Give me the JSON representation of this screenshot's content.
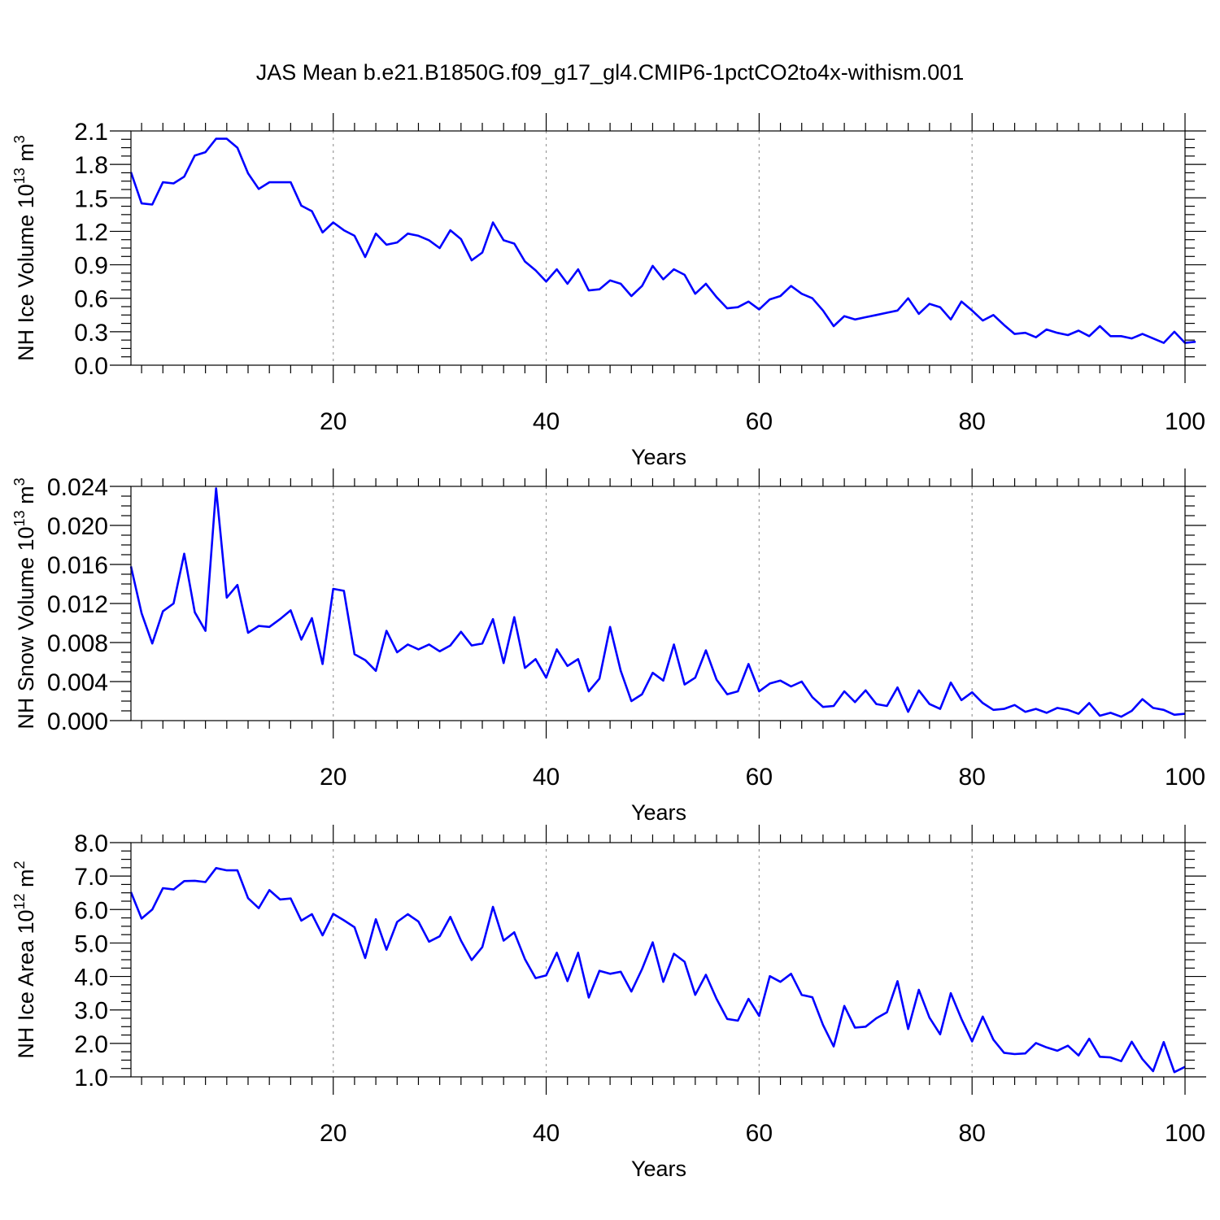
{
  "title": "JAS Mean b.e21.B1850G.f09_g17_gl4.CMIP6-1pctCO2to4x-withism.001",
  "colors": {
    "series": "#0000ff",
    "grid": "#9a9a9a"
  },
  "chart_data": [
    {
      "type": "line",
      "xlabel": "Years",
      "ylabel": "NH Ice Volume 10",
      "ylabel_sup1": "13",
      "ylabel_mid": " m",
      "ylabel_sup2": "3",
      "xlim": [
        1,
        100
      ],
      "ylim": [
        0.0,
        2.1
      ],
      "xticks": [
        20,
        40,
        60,
        80,
        100
      ],
      "xtick_labels": [
        "20",
        "40",
        "60",
        "80",
        "100"
      ],
      "yticks": [
        0.0,
        0.3,
        0.6,
        0.9,
        1.2,
        1.5,
        1.8,
        2.1
      ],
      "ytick_labels": [
        "0.0",
        "0.3",
        "0.6",
        "0.9",
        "1.2",
        "1.5",
        "1.8",
        "2.1"
      ],
      "grid": "vertical dashed at major x ticks",
      "x_start": 1,
      "values": [
        1.73,
        1.45,
        1.44,
        1.64,
        1.63,
        1.69,
        1.88,
        1.91,
        2.03,
        2.03,
        1.95,
        1.72,
        1.58,
        1.64,
        1.64,
        1.64,
        1.43,
        1.38,
        1.19,
        1.28,
        1.21,
        1.16,
        0.97,
        1.18,
        1.08,
        1.1,
        1.18,
        1.16,
        1.12,
        1.05,
        1.21,
        1.13,
        0.94,
        1.01,
        1.28,
        1.12,
        1.09,
        0.93,
        0.85,
        0.75,
        0.86,
        0.73,
        0.86,
        0.67,
        0.68,
        0.76,
        0.73,
        0.62,
        0.71,
        0.89,
        0.77,
        0.86,
        0.81,
        0.64,
        0.73,
        0.61,
        0.51,
        0.52,
        0.57,
        0.5,
        0.59,
        0.62,
        0.71,
        0.64,
        0.6,
        0.49,
        0.35,
        0.44,
        0.41,
        0.43,
        0.45,
        0.47,
        0.49,
        0.6,
        0.46,
        0.55,
        0.52,
        0.41,
        0.57,
        0.49,
        0.4,
        0.45,
        0.36,
        0.28,
        0.29,
        0.25,
        0.32,
        0.29,
        0.27,
        0.31,
        0.26,
        0.35,
        0.26,
        0.26,
        0.24,
        0.28,
        0.24,
        0.2,
        0.3,
        0.2,
        0.21
      ]
    },
    {
      "type": "line",
      "xlabel": "Years",
      "ylabel": "NH Snow Volume 10",
      "ylabel_sup1": "13",
      "ylabel_mid": " m",
      "ylabel_sup2": "3",
      "xlim": [
        1,
        100
      ],
      "ylim": [
        0.0,
        0.024
      ],
      "xticks": [
        20,
        40,
        60,
        80,
        100
      ],
      "xtick_labels": [
        "20",
        "40",
        "60",
        "80",
        "100"
      ],
      "yticks": [
        0.0,
        0.004,
        0.008,
        0.012,
        0.016,
        0.02,
        0.024
      ],
      "ytick_labels": [
        "0.000",
        "0.004",
        "0.008",
        "0.012",
        "0.016",
        "0.020",
        "0.024"
      ],
      "grid": "vertical dashed at major x ticks",
      "x_start": 1,
      "values": [
        0.0158,
        0.011,
        0.0079,
        0.0112,
        0.012,
        0.0171,
        0.0111,
        0.0092,
        0.0238,
        0.0126,
        0.0139,
        0.009,
        0.0097,
        0.0096,
        0.0104,
        0.0113,
        0.0083,
        0.0105,
        0.0058,
        0.0135,
        0.0133,
        0.0068,
        0.0062,
        0.0051,
        0.0092,
        0.007,
        0.0078,
        0.0073,
        0.0078,
        0.0071,
        0.0077,
        0.0091,
        0.0077,
        0.0079,
        0.0104,
        0.0059,
        0.0106,
        0.0054,
        0.0063,
        0.0044,
        0.0073,
        0.0056,
        0.0063,
        0.003,
        0.0043,
        0.0096,
        0.0051,
        0.002,
        0.0027,
        0.0049,
        0.0041,
        0.0078,
        0.0037,
        0.0044,
        0.0072,
        0.0042,
        0.0027,
        0.003,
        0.0058,
        0.003,
        0.0038,
        0.0041,
        0.0035,
        0.004,
        0.0024,
        0.0014,
        0.0015,
        0.003,
        0.0019,
        0.0031,
        0.0017,
        0.0015,
        0.0034,
        0.0009,
        0.0031,
        0.0017,
        0.0012,
        0.0039,
        0.0021,
        0.0029,
        0.0018,
        0.0011,
        0.0012,
        0.0016,
        0.0009,
        0.0012,
        0.0008,
        0.0013,
        0.0011,
        0.0007,
        0.0018,
        0.0005,
        0.0008,
        0.0004,
        0.001,
        0.0022,
        0.0013,
        0.0011,
        0.0006,
        0.0007
      ]
    },
    {
      "type": "line",
      "xlabel": "Years",
      "ylabel": "NH Ice Area 10",
      "ylabel_sup1": "12",
      "ylabel_mid": " m",
      "ylabel_sup2": "2",
      "xlim": [
        1,
        100
      ],
      "ylim": [
        1.0,
        8.0
      ],
      "xticks": [
        20,
        40,
        60,
        80,
        100
      ],
      "xtick_labels": [
        "20",
        "40",
        "60",
        "80",
        "100"
      ],
      "yticks": [
        1.0,
        2.0,
        3.0,
        4.0,
        5.0,
        6.0,
        7.0,
        8.0
      ],
      "ytick_labels": [
        "1.0",
        "2.0",
        "3.0",
        "4.0",
        "5.0",
        "6.0",
        "7.0",
        "8.0"
      ],
      "grid": "vertical dashed at major x ticks",
      "x_start": 1,
      "values": [
        6.52,
        5.73,
        6.0,
        6.64,
        6.6,
        6.85,
        6.86,
        6.82,
        7.24,
        7.17,
        7.17,
        6.34,
        6.04,
        6.58,
        6.3,
        6.33,
        5.67,
        5.86,
        5.23,
        5.87,
        5.68,
        5.47,
        4.55,
        5.71,
        4.8,
        5.63,
        5.86,
        5.64,
        5.04,
        5.2,
        5.78,
        5.07,
        4.49,
        4.88,
        6.08,
        5.07,
        5.32,
        4.52,
        3.95,
        4.03,
        4.71,
        3.86,
        4.71,
        3.37,
        4.17,
        4.08,
        4.14,
        3.55,
        4.22,
        5.02,
        3.84,
        4.68,
        4.44,
        3.45,
        4.05,
        3.33,
        2.73,
        2.68,
        3.33,
        2.82,
        4.01,
        3.84,
        4.08,
        3.45,
        3.38,
        2.55,
        1.91,
        3.12,
        2.47,
        2.5,
        2.75,
        2.93,
        3.86,
        2.43,
        3.6,
        2.77,
        2.27,
        3.5,
        2.73,
        2.06,
        2.8,
        2.11,
        1.72,
        1.68,
        1.7,
        2.01,
        1.88,
        1.78,
        1.93,
        1.64,
        2.14,
        1.6,
        1.58,
        1.47,
        2.05,
        1.53,
        1.17,
        2.04,
        1.14,
        1.3
      ]
    }
  ]
}
